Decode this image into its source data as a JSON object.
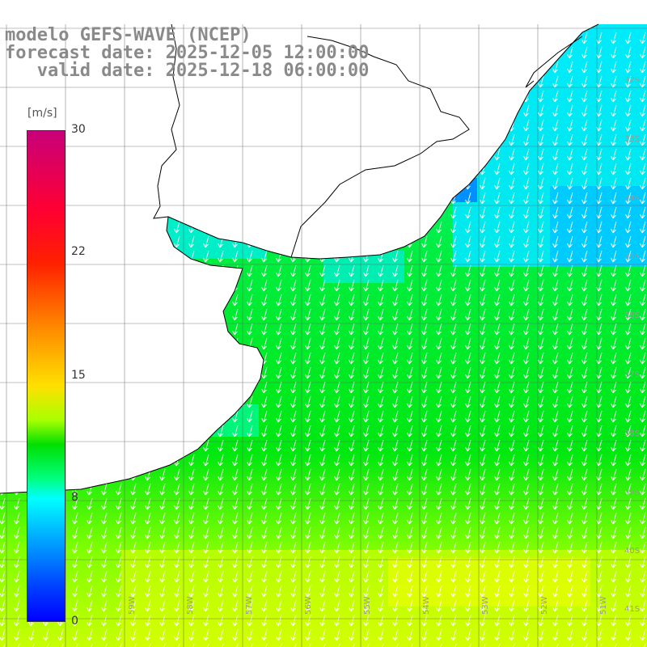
{
  "title": {
    "line1": "modelo GEFS-WAVE (NCEP)",
    "line2": "forecast date: 2025-12-05 12:00:00",
    "line3": "   valid date: 2025-12-18 06:00:00"
  },
  "colorbar": {
    "unit": "[m/s]",
    "ticks": [
      "30",
      "22",
      "15",
      "8",
      "0"
    ],
    "colors": [
      "#c8007a",
      "#ff0033",
      "#ff8800",
      "#ffe000",
      "#00e000",
      "#00ffff",
      "#0040ff",
      "#0000ff"
    ]
  },
  "map_labels": {
    "lat": [
      "32S",
      "33S",
      "34S",
      "35S",
      "36S",
      "37S",
      "38S",
      "39S",
      "40S",
      "41S"
    ],
    "lon": [
      "59W",
      "58W",
      "57W",
      "56W",
      "55W",
      "54W",
      "53W",
      "52W",
      "51W"
    ]
  },
  "wind_field": {
    "variable": "wind speed",
    "arrow_direction": "from north (southward flow)",
    "regions": {
      "land": "#ffffff",
      "coastal_low": "#00eeff",
      "offshore_mid": "#00ee22",
      "southern_strong": "#ccff00"
    }
  }
}
